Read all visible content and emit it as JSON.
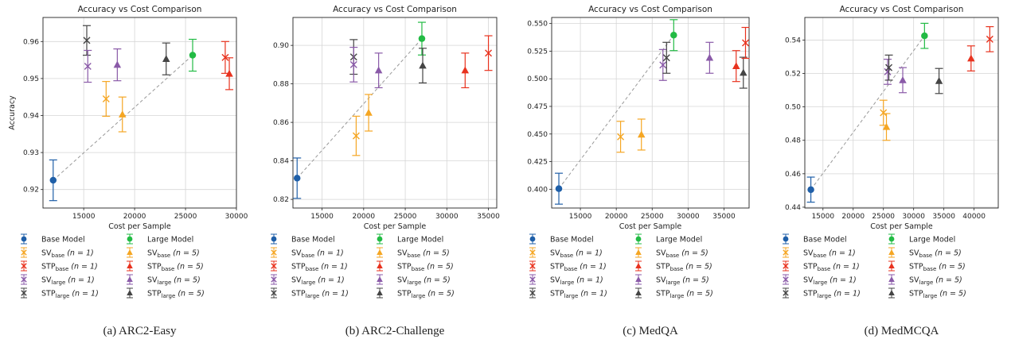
{
  "series_styles": {
    "base": {
      "label": "Base Model",
      "color": "#1f5fa8",
      "marker": "circle"
    },
    "large": {
      "label": "Large Model",
      "color": "#22bb44",
      "marker": "circle"
    },
    "sv_base_1": {
      "label_main": "SV",
      "label_sub": "base",
      "label_n": "(n = 1)",
      "color": "#f5a623",
      "marker": "x"
    },
    "sv_base_5": {
      "label_main": "SV",
      "label_sub": "base",
      "label_n": "(n = 5)",
      "color": "#f5a623",
      "marker": "triangle"
    },
    "stp_base_1": {
      "label_main": "STP",
      "label_sub": "base",
      "label_n": "(n = 1)",
      "color": "#e8321e",
      "marker": "x"
    },
    "stp_base_5": {
      "label_main": "STP",
      "label_sub": "base",
      "label_n": "(n = 5)",
      "color": "#e8321e",
      "marker": "triangle"
    },
    "sv_large_1": {
      "label_main": "SV",
      "label_sub": "large",
      "label_n": "(n = 1)",
      "color": "#8a5aa8",
      "marker": "x"
    },
    "sv_large_5": {
      "label_main": "SV",
      "label_sub": "large",
      "label_n": "(n = 5)",
      "color": "#8a5aa8",
      "marker": "triangle"
    },
    "stp_large_1": {
      "label_main": "STP",
      "label_sub": "large",
      "label_n": "(n = 1)",
      "color": "#444444",
      "marker": "x"
    },
    "stp_large_5": {
      "label_main": "STP",
      "label_sub": "large",
      "label_n": "(n = 5)",
      "color": "#444444",
      "marker": "triangle"
    }
  },
  "legend_order": [
    "base",
    "large",
    "sv_base_1",
    "sv_base_5",
    "stp_base_1",
    "stp_base_5",
    "sv_large_1",
    "sv_large_5",
    "stp_large_1",
    "stp_large_5"
  ],
  "chart_data": [
    {
      "type": "scatter",
      "title": "Accuracy vs Cost Comparison",
      "xlabel": "Cost per Sample",
      "ylabel": "Accuracy",
      "caption": "(a) ARC2-Easy",
      "xlim": [
        11000,
        30000
      ],
      "ylim": [
        0.915,
        0.9665
      ],
      "xticks": [
        15000,
        20000,
        25000,
        30000
      ],
      "yticks": [
        0.92,
        0.93,
        0.94,
        0.95,
        0.96
      ],
      "ytick_labels": [
        "0.92",
        "0.93",
        "0.94",
        "0.95",
        "0.96"
      ],
      "grid": true,
      "points": [
        {
          "key": "base",
          "x": 12000,
          "y": 0.9225,
          "err": 0.0055
        },
        {
          "key": "sv_base_1",
          "x": 17200,
          "y": 0.9445,
          "err": 0.0047
        },
        {
          "key": "sv_base_5",
          "x": 18800,
          "y": 0.9403,
          "err": 0.0047
        },
        {
          "key": "stp_large_1",
          "x": 15300,
          "y": 0.9603,
          "err": 0.004
        },
        {
          "key": "sv_large_1",
          "x": 15400,
          "y": 0.9533,
          "err": 0.0043
        },
        {
          "key": "sv_large_5",
          "x": 18300,
          "y": 0.9537,
          "err": 0.0043
        },
        {
          "key": "stp_large_5",
          "x": 23100,
          "y": 0.9553,
          "err": 0.0043
        },
        {
          "key": "large",
          "x": 25700,
          "y": 0.9563,
          "err": 0.0043
        },
        {
          "key": "stp_base_1",
          "x": 28900,
          "y": 0.9557,
          "err": 0.0043
        },
        {
          "key": "stp_base_5",
          "x": 29300,
          "y": 0.9513,
          "err": 0.0043
        }
      ]
    },
    {
      "type": "scatter",
      "title": "Accuracy vs Cost Comparison",
      "xlabel": "Cost per Sample",
      "ylabel": "",
      "caption": "(b) ARC2-Challenge",
      "xlim": [
        11500,
        36000
      ],
      "ylim": [
        0.8155,
        0.9145
      ],
      "xticks": [
        15000,
        20000,
        25000,
        30000,
        35000
      ],
      "yticks": [
        0.82,
        0.84,
        0.86,
        0.88,
        0.9
      ],
      "ytick_labels": [
        "0.82",
        "0.84",
        "0.86",
        "0.88",
        "0.90"
      ],
      "grid": true,
      "points": [
        {
          "key": "base",
          "x": 12000,
          "y": 0.831,
          "err": 0.0105
        },
        {
          "key": "sv_base_1",
          "x": 19100,
          "y": 0.853,
          "err": 0.0102
        },
        {
          "key": "sv_base_5",
          "x": 20600,
          "y": 0.865,
          "err": 0.0095
        },
        {
          "key": "stp_large_1",
          "x": 18800,
          "y": 0.894,
          "err": 0.009
        },
        {
          "key": "sv_large_1",
          "x": 18800,
          "y": 0.89,
          "err": 0.009
        },
        {
          "key": "sv_large_5",
          "x": 21800,
          "y": 0.887,
          "err": 0.009
        },
        {
          "key": "large",
          "x": 27000,
          "y": 0.9035,
          "err": 0.0085
        },
        {
          "key": "stp_large_5",
          "x": 27100,
          "y": 0.8895,
          "err": 0.009
        },
        {
          "key": "stp_base_5",
          "x": 32200,
          "y": 0.887,
          "err": 0.009
        },
        {
          "key": "stp_base_1",
          "x": 35000,
          "y": 0.896,
          "err": 0.009
        }
      ]
    },
    {
      "type": "scatter",
      "title": "Accuracy vs Cost Comparison",
      "xlabel": "Cost per Sample",
      "ylabel": "",
      "caption": "(c) MedQA",
      "xlim": [
        11000,
        38500
      ],
      "ylim": [
        0.383,
        0.5555
      ],
      "xticks": [
        15000,
        20000,
        25000,
        30000,
        35000
      ],
      "yticks": [
        0.4,
        0.425,
        0.45,
        0.475,
        0.5,
        0.525,
        0.55
      ],
      "ytick_labels": [
        "0.400",
        "0.425",
        "0.450",
        "0.475",
        "0.500",
        "0.525",
        "0.550"
      ],
      "grid": true,
      "points": [
        {
          "key": "base",
          "x": 12000,
          "y": 0.4005,
          "err": 0.014
        },
        {
          "key": "sv_base_1",
          "x": 20600,
          "y": 0.4475,
          "err": 0.014
        },
        {
          "key": "sv_base_5",
          "x": 23500,
          "y": 0.4495,
          "err": 0.014
        },
        {
          "key": "sv_large_1",
          "x": 26500,
          "y": 0.5125,
          "err": 0.014
        },
        {
          "key": "stp_large_1",
          "x": 27000,
          "y": 0.519,
          "err": 0.014
        },
        {
          "key": "large",
          "x": 28000,
          "y": 0.5395,
          "err": 0.014
        },
        {
          "key": "sv_large_5",
          "x": 33000,
          "y": 0.519,
          "err": 0.014
        },
        {
          "key": "stp_base_5",
          "x": 36700,
          "y": 0.5115,
          "err": 0.014
        },
        {
          "key": "stp_large_5",
          "x": 37700,
          "y": 0.5055,
          "err": 0.014
        },
        {
          "key": "stp_base_1",
          "x": 38000,
          "y": 0.5325,
          "err": 0.014
        }
      ]
    },
    {
      "type": "scatter",
      "title": "Accuracy vs Cost Comparison",
      "xlabel": "Cost per Sample",
      "ylabel": "",
      "caption": "(d) MedMCQA",
      "xlim": [
        12000,
        44000
      ],
      "ylim": [
        0.4395,
        0.5535
      ],
      "xticks": [
        15000,
        20000,
        25000,
        30000,
        35000,
        40000
      ],
      "yticks": [
        0.44,
        0.46,
        0.48,
        0.5,
        0.52,
        0.54
      ],
      "ytick_labels": [
        "0.44",
        "0.46",
        "0.48",
        "0.50",
        "0.52",
        "0.54"
      ],
      "grid": true,
      "points": [
        {
          "key": "base",
          "x": 13000,
          "y": 0.4505,
          "err": 0.0075
        },
        {
          "key": "sv_base_1",
          "x": 25000,
          "y": 0.4965,
          "err": 0.0075
        },
        {
          "key": "sv_base_5",
          "x": 25500,
          "y": 0.488,
          "err": 0.008
        },
        {
          "key": "sv_large_1",
          "x": 25700,
          "y": 0.521,
          "err": 0.0075
        },
        {
          "key": "stp_large_1",
          "x": 25900,
          "y": 0.5235,
          "err": 0.0075
        },
        {
          "key": "sv_large_5",
          "x": 28200,
          "y": 0.516,
          "err": 0.0075
        },
        {
          "key": "large",
          "x": 31800,
          "y": 0.5425,
          "err": 0.0075
        },
        {
          "key": "stp_large_5",
          "x": 34200,
          "y": 0.5155,
          "err": 0.0075
        },
        {
          "key": "stp_base_5",
          "x": 39500,
          "y": 0.529,
          "err": 0.0075
        },
        {
          "key": "stp_base_1",
          "x": 42600,
          "y": 0.5405,
          "err": 0.0075
        }
      ]
    }
  ]
}
